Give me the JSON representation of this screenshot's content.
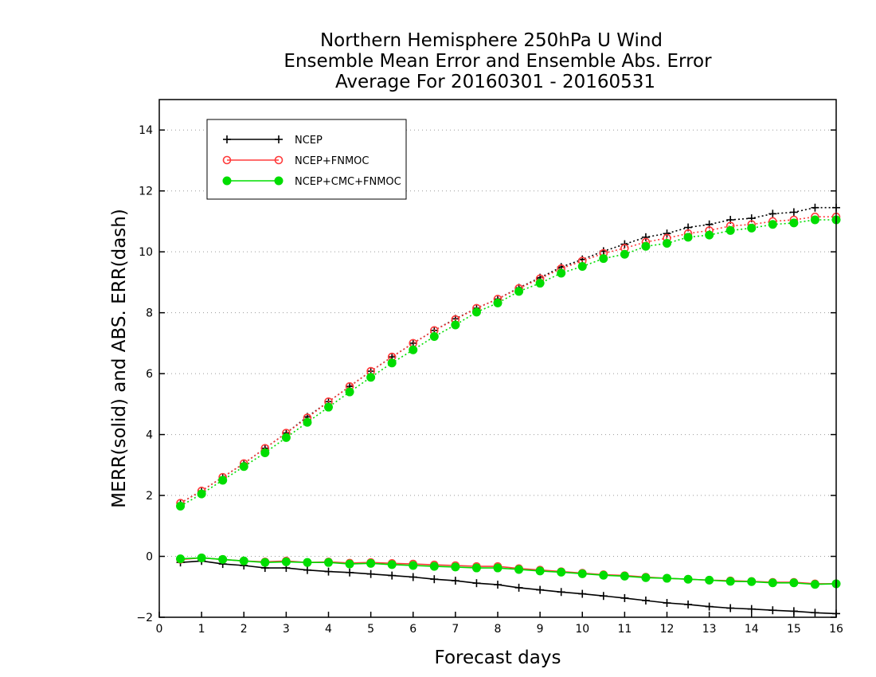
{
  "chart_data": {
    "type": "line",
    "title": [
      "Northern Hemisphere 250hPa U Wind",
      "Ensemble Mean Error and Ensemble Abs. Error",
      "Average For 20160301 - 20160531"
    ],
    "xlabel": "Forecast days",
    "ylabel": "MERR(solid) and ABS. ERR(dash)",
    "xlim": [
      0,
      16
    ],
    "ylim": [
      -2,
      15
    ],
    "xticks": [
      "0",
      "1",
      "2",
      "3",
      "4",
      "5",
      "6",
      "7",
      "8",
      "9",
      "10",
      "11",
      "12",
      "13",
      "14",
      "15",
      "16"
    ],
    "yticks": [
      "-2",
      "0",
      "2",
      "4",
      "6",
      "8",
      "10",
      "12",
      "14"
    ],
    "grid": "horizontal dotted",
    "legend_position": "top-left",
    "x": [
      0.5,
      1,
      1.5,
      2,
      2.5,
      3,
      3.5,
      4,
      4.5,
      5,
      5.5,
      6,
      6.5,
      7,
      7.5,
      8,
      8.5,
      9,
      9.5,
      10,
      10.5,
      11,
      11.5,
      12,
      12.5,
      13,
      13.5,
      14,
      14.5,
      15,
      15.5,
      16
    ],
    "series": [
      {
        "name": "NCEP",
        "color": "#000000",
        "marker": "plus",
        "merr": [
          -0.2,
          -0.15,
          -0.25,
          -0.3,
          -0.38,
          -0.38,
          -0.45,
          -0.5,
          -0.53,
          -0.58,
          -0.63,
          -0.68,
          -0.75,
          -0.8,
          -0.88,
          -0.93,
          -1.03,
          -1.1,
          -1.17,
          -1.23,
          -1.3,
          -1.37,
          -1.45,
          -1.53,
          -1.58,
          -1.65,
          -1.7,
          -1.73,
          -1.77,
          -1.8,
          -1.85,
          -1.88
        ],
        "abs_err": [
          1.75,
          2.15,
          2.6,
          3.05,
          3.55,
          4.05,
          4.58,
          5.08,
          5.58,
          6.08,
          6.55,
          7.0,
          7.42,
          7.8,
          8.15,
          8.45,
          8.82,
          9.15,
          9.5,
          9.75,
          10.02,
          10.25,
          10.48,
          10.6,
          10.8,
          10.9,
          11.05,
          11.1,
          11.25,
          11.3,
          11.45,
          11.45
        ]
      },
      {
        "name": "NCEP+FNMOC",
        "color": "#ff3b3b",
        "marker": "open-circle",
        "merr": [
          -0.1,
          -0.05,
          -0.1,
          -0.15,
          -0.18,
          -0.15,
          -0.2,
          -0.18,
          -0.22,
          -0.2,
          -0.23,
          -0.25,
          -0.28,
          -0.3,
          -0.33,
          -0.33,
          -0.4,
          -0.45,
          -0.5,
          -0.55,
          -0.6,
          -0.63,
          -0.68,
          -0.72,
          -0.75,
          -0.78,
          -0.8,
          -0.82,
          -0.85,
          -0.85,
          -0.9,
          -0.9
        ],
        "abs_err": [
          1.75,
          2.15,
          2.6,
          3.05,
          3.55,
          4.05,
          4.55,
          5.08,
          5.58,
          6.08,
          6.55,
          7.0,
          7.42,
          7.78,
          8.15,
          8.45,
          8.8,
          9.12,
          9.45,
          9.7,
          9.95,
          10.12,
          10.32,
          10.45,
          10.6,
          10.7,
          10.85,
          10.9,
          11.0,
          11.05,
          11.15,
          11.15
        ]
      },
      {
        "name": "NCEP+CMC+FNMOC",
        "color": "#00dd00",
        "marker": "filled-circle",
        "merr": [
          -0.08,
          -0.05,
          -0.1,
          -0.15,
          -0.2,
          -0.18,
          -0.2,
          -0.2,
          -0.25,
          -0.23,
          -0.27,
          -0.3,
          -0.33,
          -0.35,
          -0.38,
          -0.38,
          -0.43,
          -0.48,
          -0.52,
          -0.57,
          -0.62,
          -0.65,
          -0.7,
          -0.72,
          -0.75,
          -0.78,
          -0.82,
          -0.83,
          -0.87,
          -0.87,
          -0.92,
          -0.9
        ],
        "abs_err": [
          1.65,
          2.05,
          2.5,
          2.95,
          3.4,
          3.9,
          4.4,
          4.9,
          5.4,
          5.88,
          6.35,
          6.78,
          7.22,
          7.6,
          8.02,
          8.32,
          8.7,
          8.97,
          9.3,
          9.52,
          9.78,
          9.92,
          10.18,
          10.28,
          10.48,
          10.55,
          10.7,
          10.78,
          10.9,
          10.95,
          11.05,
          11.05
        ]
      }
    ]
  }
}
